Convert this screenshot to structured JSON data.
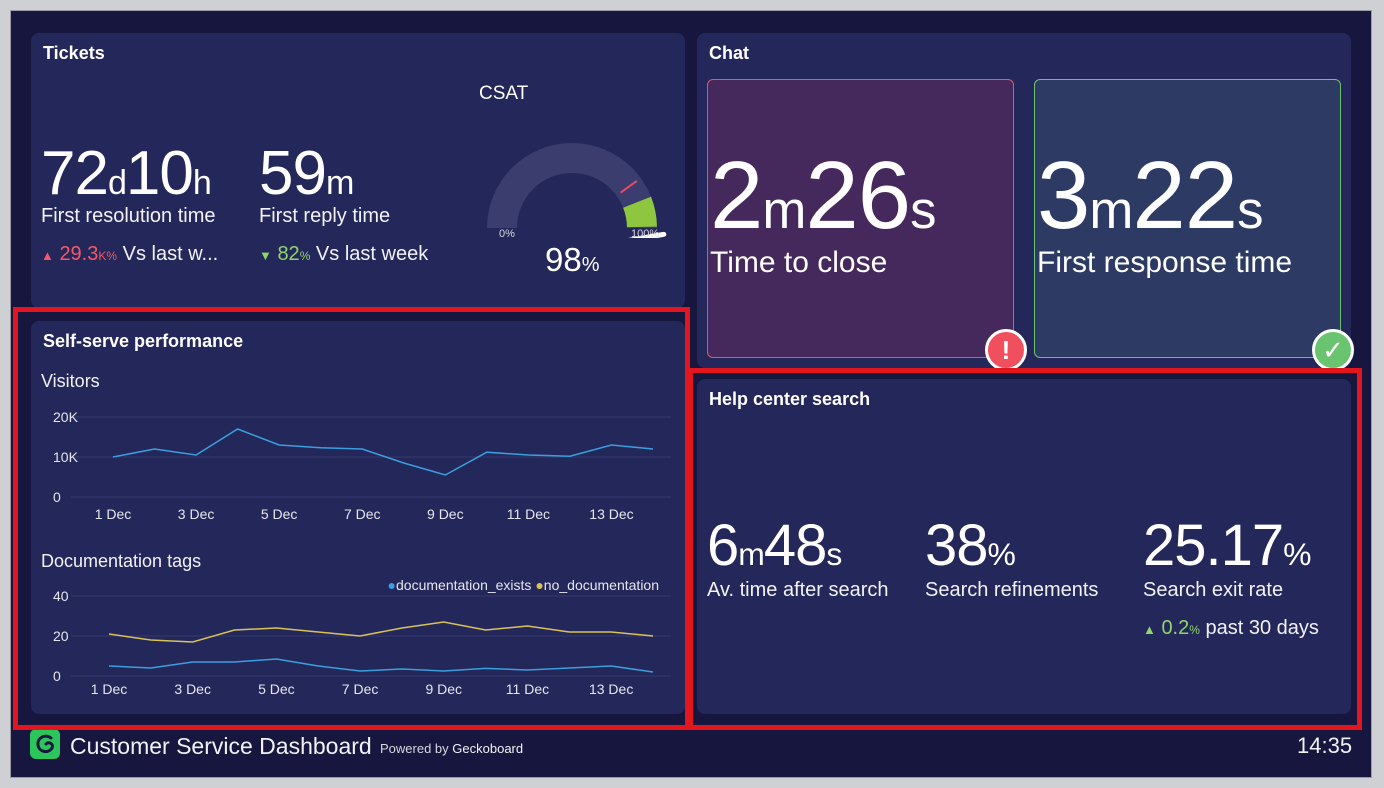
{
  "tickets": {
    "title": "Tickets",
    "resolution": {
      "d": "72",
      "d_unit": "d",
      "h": "10",
      "h_unit": "h",
      "label": "First resolution time",
      "trend_value": "29.3",
      "trend_unit": "K%",
      "trend_text": "Vs last w..."
    },
    "reply": {
      "m": "59",
      "m_unit": "m",
      "label": "First reply time",
      "trend_value": "82",
      "trend_unit": "%",
      "trend_text": "Vs last week"
    },
    "csat": {
      "title": "CSAT",
      "min_label": "0%",
      "max_label": "100%",
      "value": "98",
      "unit": "%",
      "fill_fraction": 0.98
    }
  },
  "chat": {
    "title": "Chat",
    "close": {
      "m": "2",
      "m_unit": "m",
      "s": "26",
      "s_unit": "s",
      "label": "Time to close",
      "status": "alert"
    },
    "response": {
      "m": "3",
      "m_unit": "m",
      "s": "22",
      "s_unit": "s",
      "label": "First response time",
      "status": "ok"
    }
  },
  "self_serve": {
    "title": "Self-serve performance",
    "visitors_title": "Visitors",
    "docs_title": "Documentation tags",
    "legend": {
      "a": "documentation_exists",
      "b": "no_documentation"
    }
  },
  "help": {
    "title": "Help center search",
    "time": {
      "m": "6",
      "m_unit": "m",
      "s": "48",
      "s_unit": "s",
      "label": "Av. time after search"
    },
    "refinements": {
      "value": "38",
      "unit": "%",
      "label": "Search refinements"
    },
    "exit": {
      "value": "25.17",
      "unit": "%",
      "label": "Search exit rate",
      "trend_value": "0.2",
      "trend_unit": "%",
      "trend_text": "past 30 days"
    }
  },
  "footer": {
    "title": "Customer Service Dashboard",
    "powered": "Powered by",
    "brand": "Geckoboard",
    "time": "14:35"
  },
  "colors": {
    "series_a": "#3a9fe0",
    "series_b": "#d9c25a",
    "alert": "#f0505e",
    "ok": "#6ac46f"
  },
  "chart_data": [
    {
      "type": "line",
      "title": "Visitors",
      "x": [
        "1 Dec",
        "2 Dec",
        "3 Dec",
        "4 Dec",
        "5 Dec",
        "6 Dec",
        "7 Dec",
        "8 Dec",
        "9 Dec",
        "10 Dec",
        "11 Dec",
        "12 Dec",
        "13 Dec",
        "14 Dec"
      ],
      "x_tick_labels": [
        "1 Dec",
        "3 Dec",
        "5 Dec",
        "7 Dec",
        "9 Dec",
        "11 Dec",
        "13 Dec"
      ],
      "series": [
        {
          "values": [
            10000,
            12000,
            10500,
            17000,
            13000,
            12300,
            12000,
            8500,
            5500,
            11200,
            10500,
            10200,
            13000,
            12000
          ]
        }
      ],
      "y_tick_labels": [
        "0",
        "10K",
        "20K"
      ],
      "ylim": [
        0,
        20000
      ],
      "grid": true
    },
    {
      "type": "line",
      "title": "Documentation tags",
      "x": [
        "1 Dec",
        "2 Dec",
        "3 Dec",
        "4 Dec",
        "5 Dec",
        "6 Dec",
        "7 Dec",
        "8 Dec",
        "9 Dec",
        "10 Dec",
        "11 Dec",
        "12 Dec",
        "13 Dec",
        "14 Dec"
      ],
      "x_tick_labels": [
        "1 Dec",
        "3 Dec",
        "5 Dec",
        "7 Dec",
        "9 Dec",
        "11 Dec",
        "13 Dec"
      ],
      "series": [
        {
          "name": "documentation_exists",
          "values": [
            5,
            4,
            7,
            7,
            8.5,
            5,
            2.5,
            3.5,
            2.5,
            3.8,
            3,
            4,
            5,
            2
          ]
        },
        {
          "name": "no_documentation",
          "values": [
            21,
            18,
            17,
            23,
            24,
            22,
            20,
            24,
            27,
            23,
            25,
            22,
            22,
            20
          ]
        }
      ],
      "y_tick_labels": [
        "0",
        "20",
        "40"
      ],
      "ylim": [
        0,
        40
      ],
      "legend": "top-right",
      "grid": true
    }
  ]
}
